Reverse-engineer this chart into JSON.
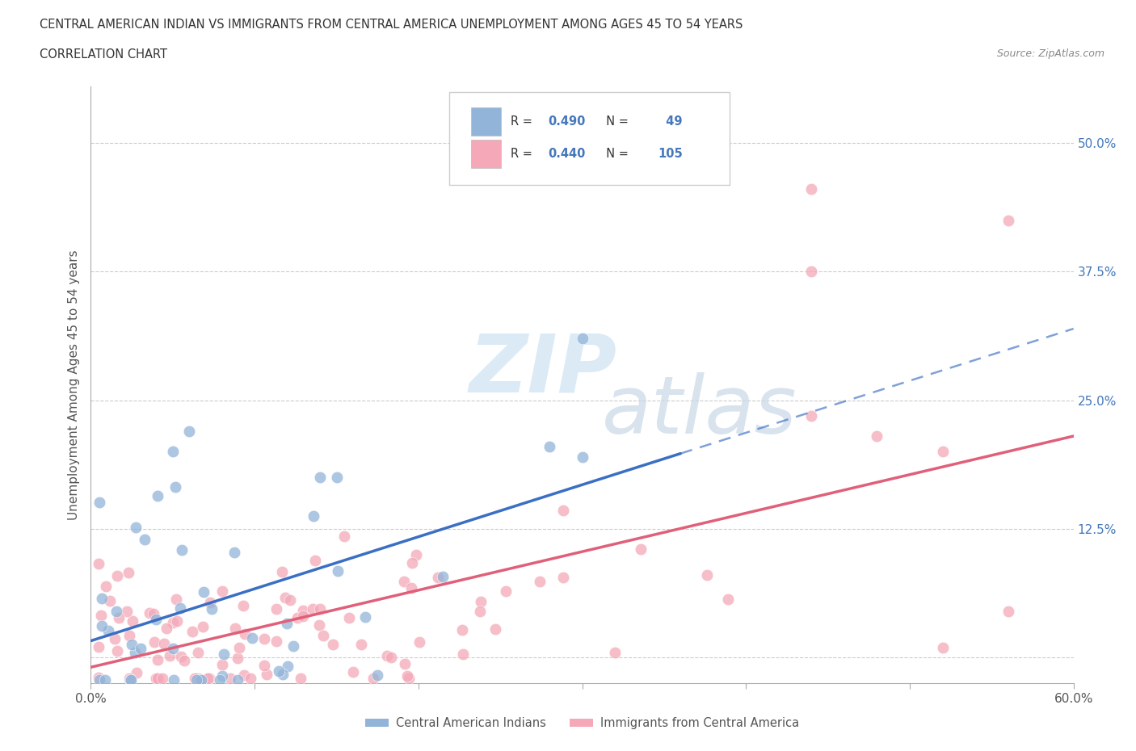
{
  "title_line1": "CENTRAL AMERICAN INDIAN VS IMMIGRANTS FROM CENTRAL AMERICA UNEMPLOYMENT AMONG AGES 45 TO 54 YEARS",
  "title_line2": "CORRELATION CHART",
  "source_text": "Source: ZipAtlas.com",
  "ylabel": "Unemployment Among Ages 45 to 54 years",
  "xlim": [
    0.0,
    0.6
  ],
  "ylim": [
    -0.025,
    0.555
  ],
  "ytick_positions": [
    0.0,
    0.125,
    0.25,
    0.375,
    0.5
  ],
  "yticklabels": [
    "",
    "12.5%",
    "25.0%",
    "37.5%",
    "50.0%"
  ],
  "blue_R": "0.490",
  "blue_N": "49",
  "pink_R": "0.440",
  "pink_N": "105",
  "blue_color": "#92B4D8",
  "pink_color": "#F4A8B8",
  "blue_line_color": "#3A6FC4",
  "pink_line_color": "#E0607A",
  "blue_scatter_seed": 42,
  "pink_scatter_seed": 99,
  "legend_label_blue": "Central American Indians",
  "legend_label_pink": "Immigrants from Central America",
  "watermark_zip": "ZIP",
  "watermark_atlas": "atlas",
  "bg_color": "#FFFFFF",
  "grid_color": "#CCCCCC",
  "spine_color": "#AAAAAA",
  "tick_color": "#555555",
  "ylabel_color": "#555555",
  "ytick_label_color": "#4477BB",
  "title_color": "#333333",
  "source_color": "#888888",
  "legend_text_color": "#333333",
  "legend_num_color": "#4477BB"
}
